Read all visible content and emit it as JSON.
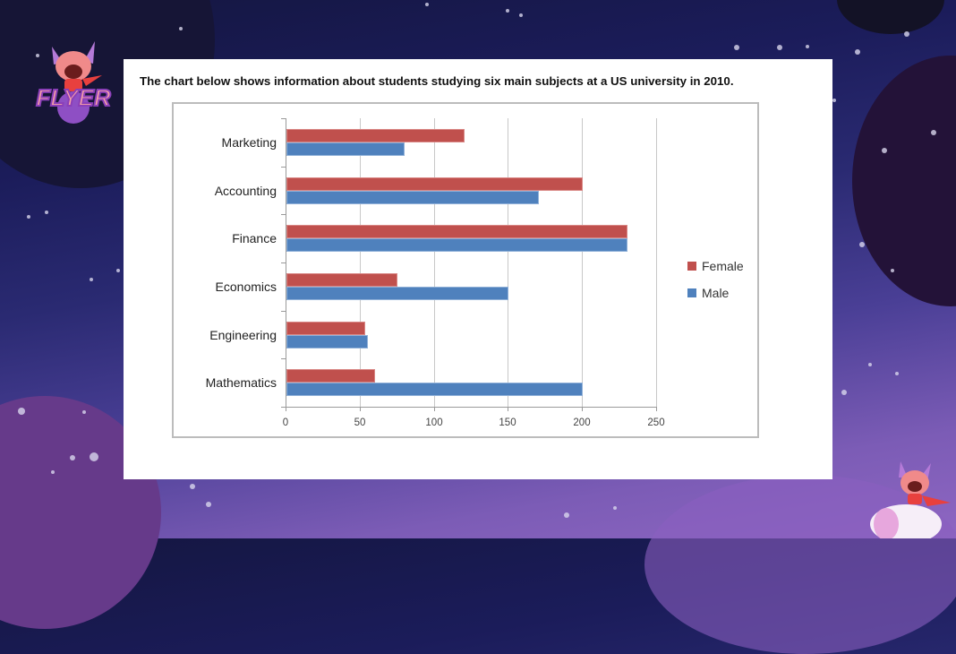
{
  "background": {
    "logo_text": "FLYER",
    "logo_icon": "flyer-mascot-logo",
    "corner_mascot_icon": "flyer-mascot-rocket"
  },
  "chart_card": {
    "title": "The chart below shows information about students studying six main subjects at a US university in 2010."
  },
  "chart_data": {
    "type": "bar",
    "orientation": "horizontal",
    "title": "The chart below shows information about students studying six main subjects at a US university in 2010.",
    "categories": [
      "Marketing",
      "Accounting",
      "Finance",
      "Economics",
      "Engineering",
      "Mathematics"
    ],
    "series": [
      {
        "name": "Female",
        "color": "#c0504d",
        "values": [
          120,
          200,
          230,
          75,
          53,
          60
        ]
      },
      {
        "name": "Male",
        "color": "#4f81bd",
        "values": [
          80,
          170,
          230,
          150,
          55,
          200
        ]
      }
    ],
    "xlabel": "",
    "ylabel": "",
    "xlim": [
      0,
      250
    ],
    "x_ticks": [
      "0",
      "50",
      "100",
      "150",
      "200",
      "250"
    ],
    "grid": "vertical",
    "legend_position": "right"
  },
  "legend": [
    {
      "label": "Female",
      "color": "#c0504d"
    },
    {
      "label": "Male",
      "color": "#4f81bd"
    }
  ]
}
